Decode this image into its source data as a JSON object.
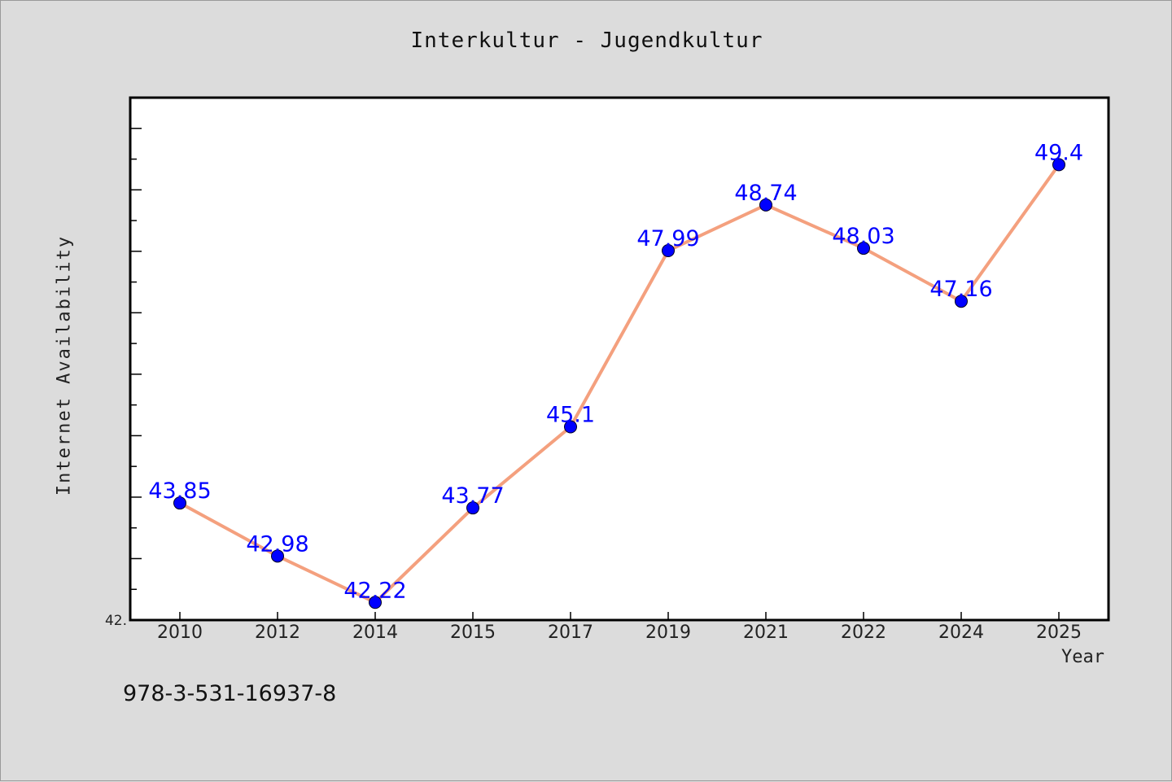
{
  "chart_data": {
    "type": "line",
    "title": "Interkultur - Jugendkultur",
    "xlabel": "Year",
    "ylabel": "Internet Availability",
    "categories": [
      "2010",
      "2012",
      "2014",
      "2015",
      "2017",
      "2019",
      "2021",
      "2022",
      "2024",
      "2025"
    ],
    "series": [
      {
        "values": [
          43.85,
          42.98,
          42.22,
          43.77,
          45.1,
          47.99,
          48.74,
          48.03,
          47.16,
          49.4
        ],
        "labels": [
          "43.85",
          "42.98",
          "42.22",
          "43.77",
          "45.1",
          "47.99",
          "48.74",
          "48.03",
          "47.16",
          "49.4"
        ],
        "line_color": "#f4a07e",
        "marker_color": "#0000ff",
        "label_color": "#0000ff"
      }
    ],
    "ylim": [
      41.93,
      50.5
    ],
    "y_tick_label": "42.",
    "grid": false,
    "legend": "none"
  },
  "footer": {
    "isbn": "978-3-531-16937-8"
  }
}
